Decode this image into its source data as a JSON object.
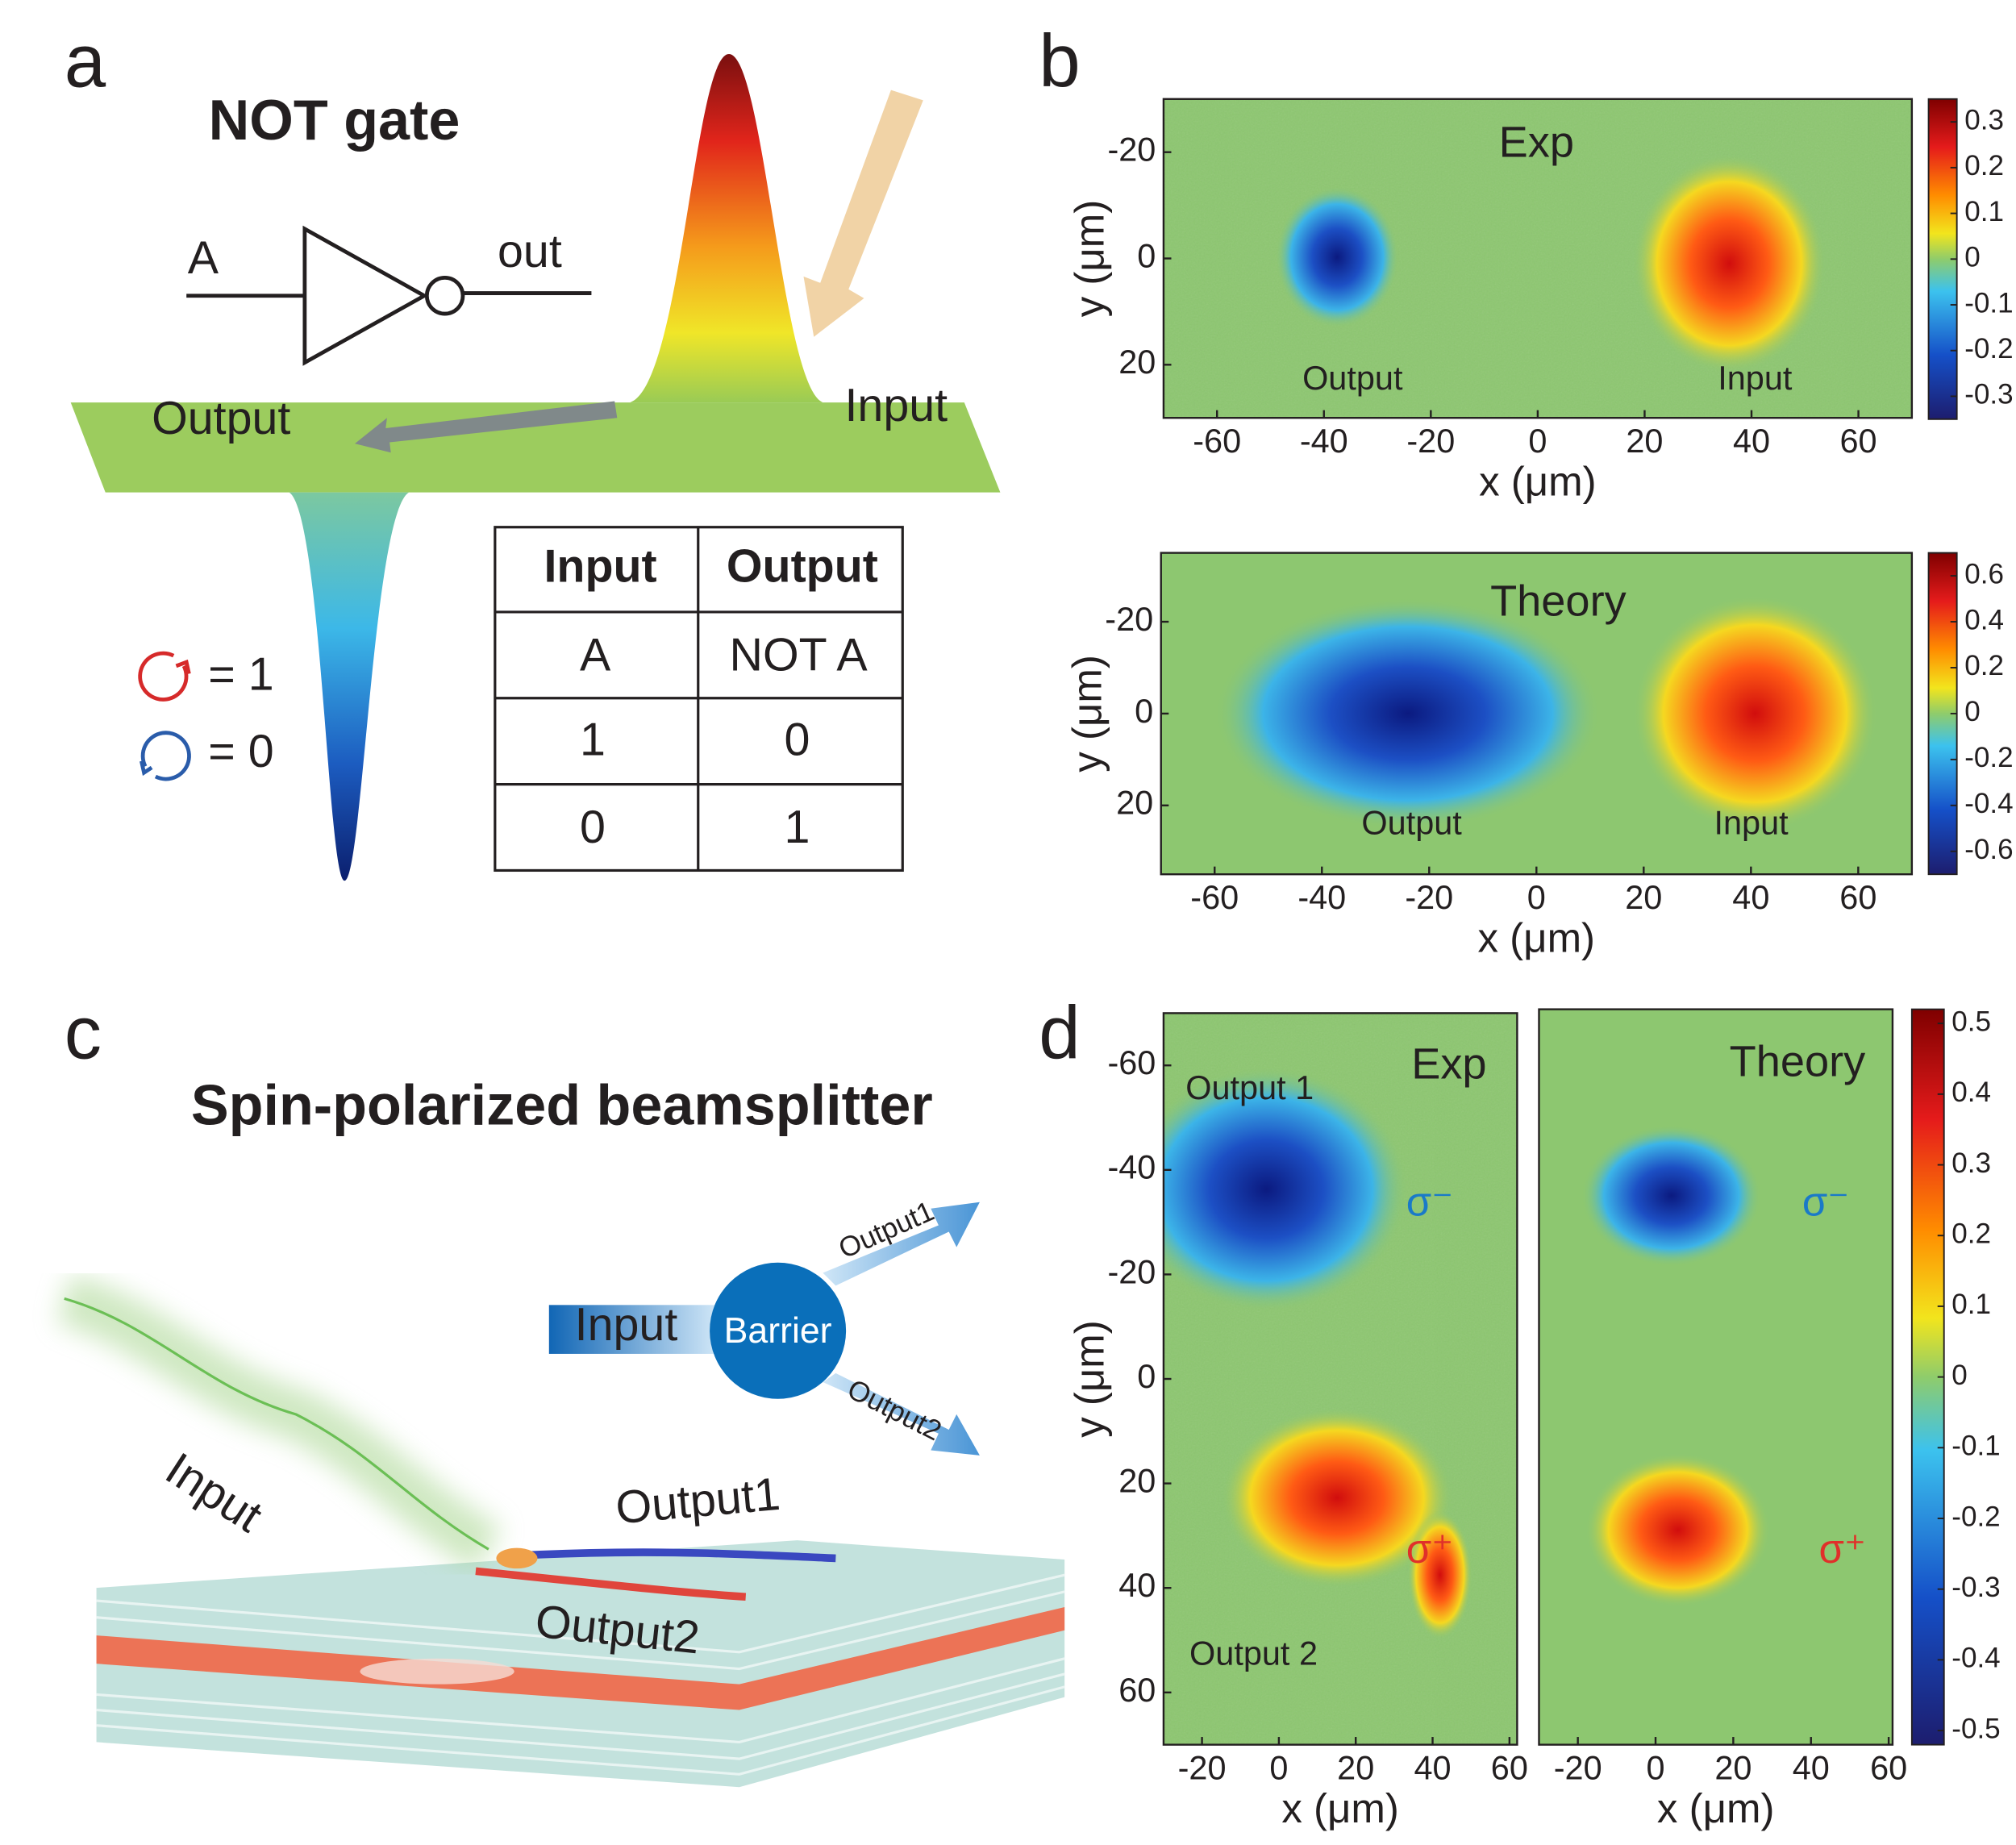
{
  "panel_a": {
    "label": "a",
    "title": "NOT gate",
    "gate": {
      "input": "A",
      "output": "out"
    },
    "surface": {
      "output": "Output",
      "input": "Input"
    },
    "legend": {
      "spin_up": "= 1",
      "spin_down": "= 0"
    },
    "table": {
      "header": [
        "Input",
        "Output"
      ],
      "rows": [
        [
          "A",
          "NOT A"
        ],
        [
          1,
          0
        ],
        [
          0,
          1
        ]
      ]
    }
  },
  "panel_b": {
    "label": "b",
    "maps": [
      {
        "title": "Exp",
        "xlabel": "x (μm)",
        "ylabel": "y (μm)",
        "xlim": [
          -70,
          70
        ],
        "ylim": [
          -30,
          30
        ],
        "y_axis_reversed": true,
        "xticks": [
          -60,
          -40,
          -20,
          0,
          20,
          40,
          60
        ],
        "yticks": [
          -20,
          0,
          20
        ],
        "annotations": [
          {
            "text": "Output",
            "color": "#231f20"
          },
          {
            "text": "Input",
            "color": "#231f20"
          }
        ],
        "colorbar": {
          "lim": [
            -0.35,
            0.35
          ],
          "ticks": [
            0.3,
            0.2,
            0.1,
            0,
            -0.1,
            -0.2,
            -0.3
          ]
        }
      },
      {
        "title": "Theory",
        "xlabel": "x (μm)",
        "ylabel": "y (μm)",
        "xlim": [
          -70,
          70
        ],
        "ylim": [
          -35,
          35
        ],
        "y_axis_reversed": true,
        "xticks": [
          -60,
          -40,
          -20,
          0,
          20,
          40,
          60
        ],
        "yticks": [
          -20,
          0,
          20
        ],
        "annotations": [
          {
            "text": "Output",
            "color": "#231f20"
          },
          {
            "text": "Input",
            "color": "#231f20"
          }
        ],
        "colorbar": {
          "lim": [
            -0.7,
            0.7
          ],
          "ticks": [
            0.6,
            0.4,
            0.2,
            0,
            -0.2,
            -0.4,
            -0.6
          ]
        }
      }
    ]
  },
  "panel_c": {
    "label": "c",
    "title": "Spin-polarized beamsplitter",
    "schematic": {
      "input": "Input",
      "barrier": "Barrier",
      "output1": "Output1",
      "output2": "Output2"
    },
    "scene": {
      "input": "Input",
      "output1": "Output1",
      "output2": "Output2"
    }
  },
  "panel_d": {
    "label": "d",
    "maps": [
      {
        "title": "Exp",
        "xlabel": "x (μm)",
        "ylabel": "y (μm)",
        "xlim": [
          -30,
          62
        ],
        "ylim": [
          -70,
          70
        ],
        "y_axis_reversed": true,
        "xticks": [
          -20,
          0,
          20,
          40,
          60
        ],
        "yticks": [
          -60,
          -40,
          -20,
          0,
          20,
          40,
          60
        ],
        "annotations": [
          {
            "text": "Output 1",
            "color": "#231f20"
          },
          {
            "text": "σ⁻",
            "color": "#1a7ac8"
          },
          {
            "text": "σ⁺",
            "color": "#e0302a"
          },
          {
            "text": "Output 2",
            "color": "#231f20"
          }
        ]
      },
      {
        "title": "Theory",
        "xlabel": "x (μm)",
        "xlim": [
          -30,
          61
        ],
        "ylim": [
          -70,
          70
        ],
        "y_axis_reversed": true,
        "xticks": [
          -20,
          0,
          20,
          40,
          60
        ],
        "annotations": [
          {
            "text": "σ⁻",
            "color": "#1a7ac8"
          },
          {
            "text": "σ⁺",
            "color": "#e0302a"
          }
        ]
      }
    ],
    "colorbar": {
      "lim": [
        -0.52,
        0.52
      ],
      "ticks": [
        0.5,
        0.4,
        0.3,
        0.2,
        0.1,
        0,
        -0.1,
        -0.2,
        -0.3,
        -0.4,
        -0.5
      ]
    }
  }
}
